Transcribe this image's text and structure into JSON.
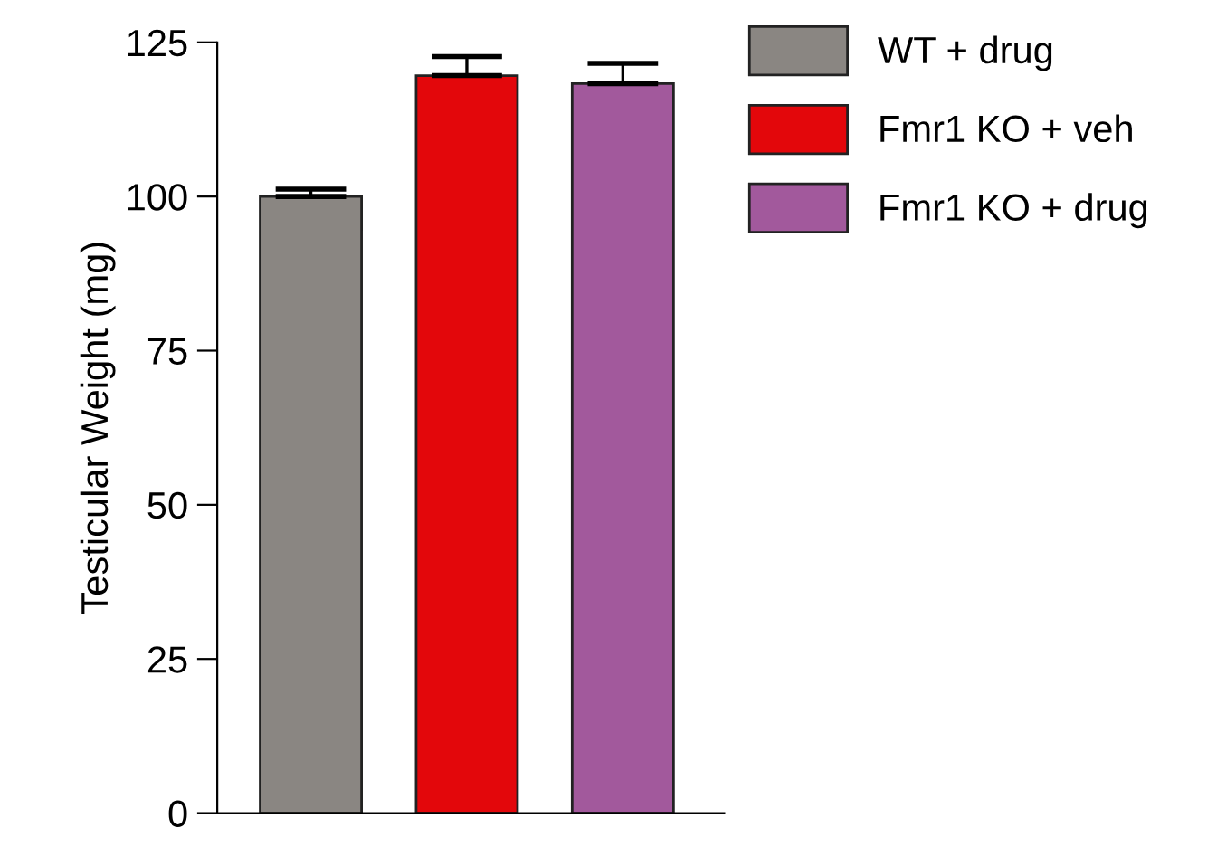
{
  "chart_data": {
    "type": "bar",
    "ylabel": "Testicular Weight (mg)",
    "categories": [
      null,
      null,
      null
    ],
    "series": [
      {
        "name": "WT + drug",
        "color": "#8a8682",
        "values": [
          100,
          null,
          null
        ],
        "errors": [
          1.2,
          null,
          null
        ]
      },
      {
        "name": "Fmr1 KO + veh",
        "color": "#e3070b",
        "values": [
          null,
          119.6,
          null
        ],
        "errors": [
          null,
          3.1,
          null
        ]
      },
      {
        "name": "Fmr1 KO + drug",
        "color": "#a2599c",
        "values": [
          null,
          null,
          118.3
        ],
        "errors": [
          null,
          null,
          3.3
        ]
      }
    ],
    "ylim": [
      0,
      125
    ],
    "yticks": [
      0,
      25,
      50,
      75,
      100,
      125
    ],
    "grid": false,
    "legend": "top right"
  }
}
